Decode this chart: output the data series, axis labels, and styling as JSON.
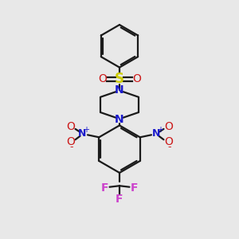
{
  "bg_color": "#e8e8e8",
  "bond_color": "#1a1a1a",
  "N_color": "#1a1acc",
  "O_color": "#cc1a1a",
  "S_color": "#cccc00",
  "F_color": "#cc44cc",
  "line_width": 1.6,
  "figsize": [
    3.0,
    3.0
  ],
  "dpi": 100,
  "xlim": [
    0,
    10
  ],
  "ylim": [
    0,
    10
  ]
}
